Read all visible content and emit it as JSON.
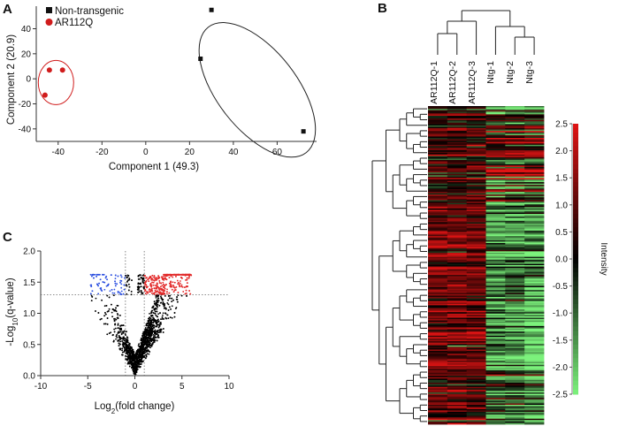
{
  "panels": {
    "a": "A",
    "b": "B",
    "c": "C"
  },
  "colors": {
    "nontransgenic": "#111111",
    "ar112q": "#d01c1c",
    "heat_high": "#e01414",
    "heat_mid": "#000000",
    "heat_low": "#7cf27c",
    "volcano_up": "#e22b2b",
    "volcano_down": "#2b4fe0",
    "volcano_ns": "#000000"
  },
  "chart_data": [
    {
      "type": "scatter",
      "panel": "A",
      "xlabel": "Component 1 (49.3)",
      "ylabel": "Component 2 (20.9)",
      "xlim": [
        -50,
        78
      ],
      "ylim": [
        -50,
        58
      ],
      "xticks": [
        -40,
        -20,
        0,
        20,
        40,
        60
      ],
      "yticks": [
        -40,
        -20,
        0,
        20,
        40
      ],
      "legend": {
        "position": "top-left",
        "entries": [
          "Non-transgenic",
          "AR112Q"
        ]
      },
      "series": [
        {
          "name": "Non-transgenic",
          "marker": "square",
          "points": [
            [
              30,
              55
            ],
            [
              25,
              16
            ],
            [
              72,
              -42
            ]
          ]
        },
        {
          "name": "AR112Q",
          "marker": "circle",
          "points": [
            [
              -44,
              7
            ],
            [
              -38,
              7
            ],
            [
              -46,
              -13
            ]
          ]
        }
      ]
    },
    {
      "type": "heatmap",
      "panel": "B",
      "columns": [
        "AR112Q-1",
        "AR112Q-2",
        "AR112Q-3",
        "Ntg-1",
        "Ntg-2",
        "Ntg-3"
      ],
      "colorbar": {
        "label": "Intensity",
        "range": [
          -2.5,
          2.5
        ],
        "ticks": [
          "2.5",
          "2.0",
          "1.5",
          "1.0",
          "0.5",
          "0.0",
          "-0.5",
          "-1.0",
          "-1.5",
          "-2.0",
          "-2.5"
        ]
      },
      "rows": 230
    },
    {
      "type": "scatter",
      "panel": "C",
      "xlabel_main": "Log",
      "xlabel_sub": "2",
      "xlabel_rest": "(fold change)",
      "ylabel_main": "-Log",
      "ylabel_sub": "10",
      "ylabel_rest": "(q-value)",
      "xlim": [
        -10,
        10
      ],
      "ylim": [
        0,
        2.0
      ],
      "xticks": [
        "-10",
        "-5",
        "0",
        "5",
        "10"
      ],
      "yticks": [
        "0.0",
        "0.5",
        "1.0",
        "1.5",
        "2.0"
      ],
      "thresholds": {
        "q_line": 1.3,
        "fc_lines": [
          -1,
          1
        ]
      },
      "n_points": 3200
    }
  ]
}
